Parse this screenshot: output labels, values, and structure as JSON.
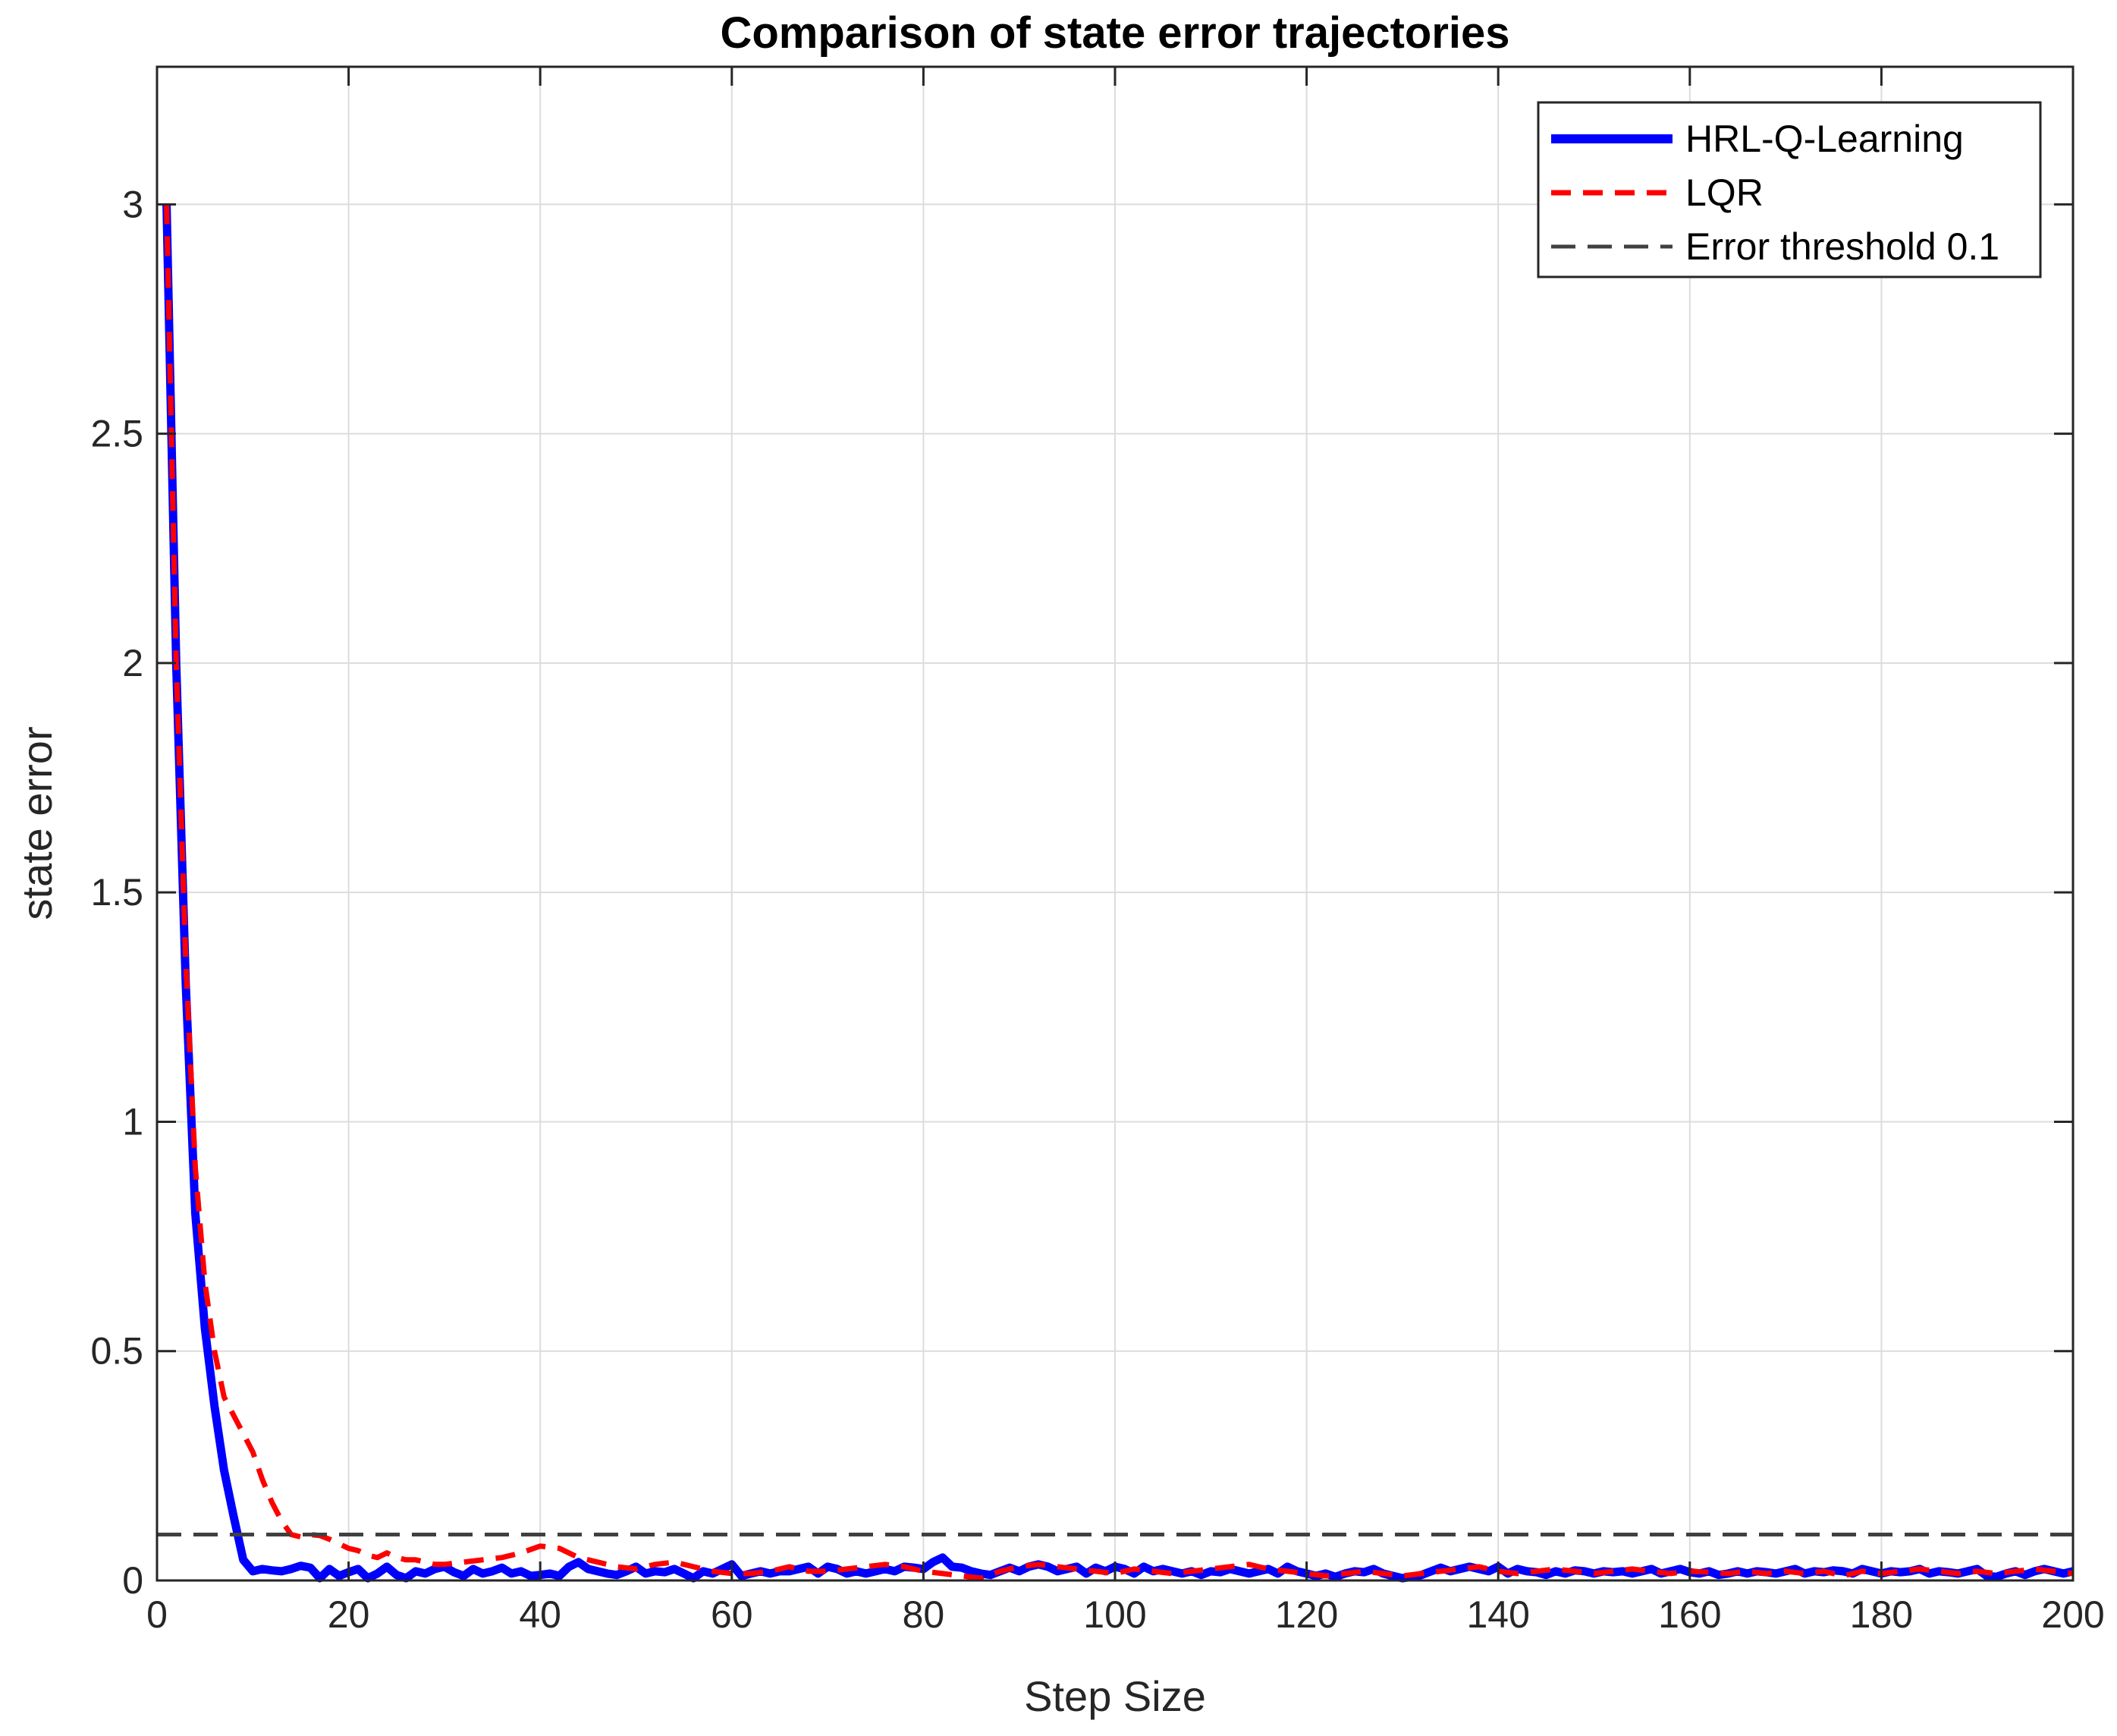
{
  "chart_data": {
    "type": "line",
    "title": "Comparison of state error trajectories",
    "xlabel": "Step Size",
    "ylabel": "state error",
    "xlim": [
      0,
      200
    ],
    "ylim": [
      0,
      3.3
    ],
    "xticks": [
      0,
      20,
      40,
      60,
      80,
      100,
      120,
      140,
      160,
      180,
      200
    ],
    "yticks": [
      0,
      0.5,
      1,
      1.5,
      2,
      2.5,
      3
    ],
    "xtick_labels": [
      "0",
      "20",
      "40",
      "60",
      "80",
      "100",
      "120",
      "140",
      "160",
      "180",
      "200"
    ],
    "ytick_labels": [
      "0",
      "0.5",
      "1",
      "1.5",
      "2",
      "2.5",
      "3"
    ],
    "grid": true,
    "legend_position": "top-right",
    "series": [
      {
        "name": "HRL-Q-Learning",
        "color": "#0000ff",
        "style": "solid",
        "x": [
          1,
          2,
          3,
          4,
          5,
          6,
          7,
          8,
          9,
          10,
          11,
          12,
          13,
          14,
          15,
          16,
          17,
          18,
          19,
          20,
          21,
          22,
          23,
          24,
          25,
          26,
          27,
          28,
          29,
          30,
          31,
          32,
          33,
          34,
          35,
          36,
          37,
          38,
          39,
          40,
          41,
          42,
          43,
          44,
          45,
          46,
          47,
          48,
          49,
          50,
          51,
          52,
          53,
          54,
          55,
          56,
          57,
          58,
          59,
          60,
          61,
          62,
          63,
          64,
          65,
          66,
          67,
          68,
          69,
          70,
          71,
          72,
          73,
          74,
          75,
          76,
          77,
          78,
          79,
          80,
          81,
          82,
          83,
          84,
          85,
          86,
          87,
          88,
          89,
          90,
          91,
          92,
          93,
          94,
          95,
          96,
          97,
          98,
          99,
          100,
          101,
          102,
          103,
          104,
          105,
          106,
          107,
          108,
          109,
          110,
          111,
          112,
          113,
          114,
          115,
          116,
          117,
          118,
          119,
          120,
          121,
          122,
          123,
          124,
          125,
          126,
          127,
          128,
          129,
          130,
          131,
          132,
          133,
          134,
          135,
          136,
          137,
          138,
          139,
          140,
          141,
          142,
          143,
          144,
          145,
          146,
          147,
          148,
          149,
          150,
          151,
          152,
          153,
          154,
          155,
          156,
          157,
          158,
          159,
          160,
          161,
          162,
          163,
          164,
          165,
          166,
          167,
          168,
          169,
          170,
          171,
          172,
          173,
          174,
          175,
          176,
          177,
          178,
          179,
          180,
          181,
          182,
          183,
          184,
          185,
          186,
          187,
          188,
          189,
          190,
          191,
          192,
          193,
          194,
          195,
          196,
          197,
          198,
          199,
          200
        ],
        "y": [
          3.0,
          2.0,
          1.3,
          0.8,
          0.55,
          0.38,
          0.24,
          0.14,
          0.045,
          0.02,
          0.025,
          0.022,
          0.02,
          0.025,
          0.032,
          0.028,
          0.005,
          0.025,
          0.01,
          0.018,
          0.025,
          0.005,
          0.015,
          0.03,
          0.012,
          0.005,
          0.02,
          0.015,
          0.025,
          0.03,
          0.018,
          0.01,
          0.025,
          0.015,
          0.02,
          0.028,
          0.015,
          0.02,
          0.01,
          0.012,
          0.015,
          0.01,
          0.03,
          0.04,
          0.025,
          0.02,
          0.015,
          0.012,
          0.02,
          0.03,
          0.015,
          0.02,
          0.018,
          0.025,
          0.015,
          0.005,
          0.02,
          0.015,
          0.025,
          0.035,
          0.01,
          0.015,
          0.02,
          0.015,
          0.02,
          0.02,
          0.025,
          0.03,
          0.015,
          0.03,
          0.025,
          0.015,
          0.02,
          0.015,
          0.02,
          0.025,
          0.02,
          0.03,
          0.028,
          0.025,
          0.04,
          0.05,
          0.03,
          0.028,
          0.02,
          0.015,
          0.012,
          0.02,
          0.028,
          0.02,
          0.03,
          0.035,
          0.03,
          0.02,
          0.025,
          0.03,
          0.015,
          0.028,
          0.02,
          0.03,
          0.025,
          0.015,
          0.03,
          0.02,
          0.025,
          0.02,
          0.015,
          0.02,
          0.012,
          0.02,
          0.018,
          0.025,
          0.02,
          0.015,
          0.02,
          0.025,
          0.015,
          0.03,
          0.02,
          0.015,
          0.01,
          0.015,
          0.008,
          0.015,
          0.02,
          0.018,
          0.025,
          0.015,
          0.01,
          0.005,
          0.008,
          0.012,
          0.02,
          0.028,
          0.02,
          0.025,
          0.03,
          0.025,
          0.02,
          0.03,
          0.015,
          0.025,
          0.02,
          0.018,
          0.012,
          0.02,
          0.015,
          0.022,
          0.02,
          0.015,
          0.02,
          0.018,
          0.02,
          0.015,
          0.02,
          0.025,
          0.015,
          0.02,
          0.025,
          0.018,
          0.015,
          0.02,
          0.012,
          0.015,
          0.02,
          0.015,
          0.02,
          0.018,
          0.015,
          0.02,
          0.025,
          0.015,
          0.02,
          0.018,
          0.022,
          0.02,
          0.015,
          0.025,
          0.02,
          0.015,
          0.02,
          0.018,
          0.02,
          0.025,
          0.015,
          0.02,
          0.018,
          0.015,
          0.02,
          0.025,
          0.01,
          0.008,
          0.015,
          0.02,
          0.012,
          0.02,
          0.025,
          0.02,
          0.015,
          0.02
        ]
      },
      {
        "name": "LQR",
        "color": "#ff0000",
        "style": "dashed",
        "x": [
          1,
          2,
          3,
          4,
          5,
          6,
          7,
          8,
          9,
          10,
          11,
          12,
          13,
          14,
          15,
          16,
          17,
          18,
          19,
          20,
          21,
          22,
          23,
          24,
          25,
          26,
          27,
          28,
          29,
          30,
          32,
          34,
          36,
          38,
          40,
          42,
          44,
          46,
          48,
          50,
          52,
          54,
          56,
          58,
          60,
          62,
          64,
          66,
          68,
          70,
          72,
          74,
          76,
          78,
          80,
          82,
          84,
          86,
          88,
          90,
          92,
          94,
          96,
          98,
          100,
          102,
          104,
          106,
          108,
          110,
          112,
          114,
          116,
          118,
          120,
          122,
          124,
          126,
          128,
          130,
          132,
          134,
          136,
          138,
          140,
          142,
          144,
          146,
          148,
          150,
          152,
          154,
          156,
          158,
          160,
          162,
          164,
          166,
          168,
          170,
          172,
          174,
          176,
          178,
          180,
          182,
          184,
          186,
          188,
          190,
          192,
          194,
          196,
          198,
          200
        ],
        "y": [
          3.0,
          2.0,
          1.35,
          0.9,
          0.65,
          0.5,
          0.4,
          0.36,
          0.32,
          0.28,
          0.22,
          0.17,
          0.13,
          0.1,
          0.095,
          0.1,
          0.098,
          0.09,
          0.08,
          0.07,
          0.065,
          0.055,
          0.05,
          0.06,
          0.05,
          0.045,
          0.045,
          0.04,
          0.035,
          0.035,
          0.04,
          0.045,
          0.05,
          0.06,
          0.075,
          0.07,
          0.05,
          0.04,
          0.03,
          0.025,
          0.035,
          0.04,
          0.03,
          0.02,
          0.015,
          0.015,
          0.02,
          0.03,
          0.02,
          0.02,
          0.025,
          0.03,
          0.035,
          0.03,
          0.02,
          0.015,
          0.01,
          0.005,
          0.02,
          0.03,
          0.035,
          0.03,
          0.025,
          0.02,
          0.015,
          0.025,
          0.02,
          0.015,
          0.02,
          0.025,
          0.03,
          0.035,
          0.025,
          0.02,
          0.015,
          0.01,
          0.015,
          0.02,
          0.015,
          0.01,
          0.015,
          0.02,
          0.025,
          0.03,
          0.02,
          0.015,
          0.02,
          0.025,
          0.02,
          0.015,
          0.02,
          0.025,
          0.02,
          0.015,
          0.02,
          0.018,
          0.015,
          0.02,
          0.015,
          0.02,
          0.015,
          0.02,
          0.01,
          0.02,
          0.015,
          0.02,
          0.025,
          0.02,
          0.015,
          0.02,
          0.015,
          0.02,
          0.025,
          0.02,
          0.015
        ]
      },
      {
        "name": "Error threshold 0.1",
        "color": "#404040",
        "style": "dashed",
        "x": [
          0,
          200
        ],
        "y": [
          0.1,
          0.1
        ]
      }
    ]
  }
}
